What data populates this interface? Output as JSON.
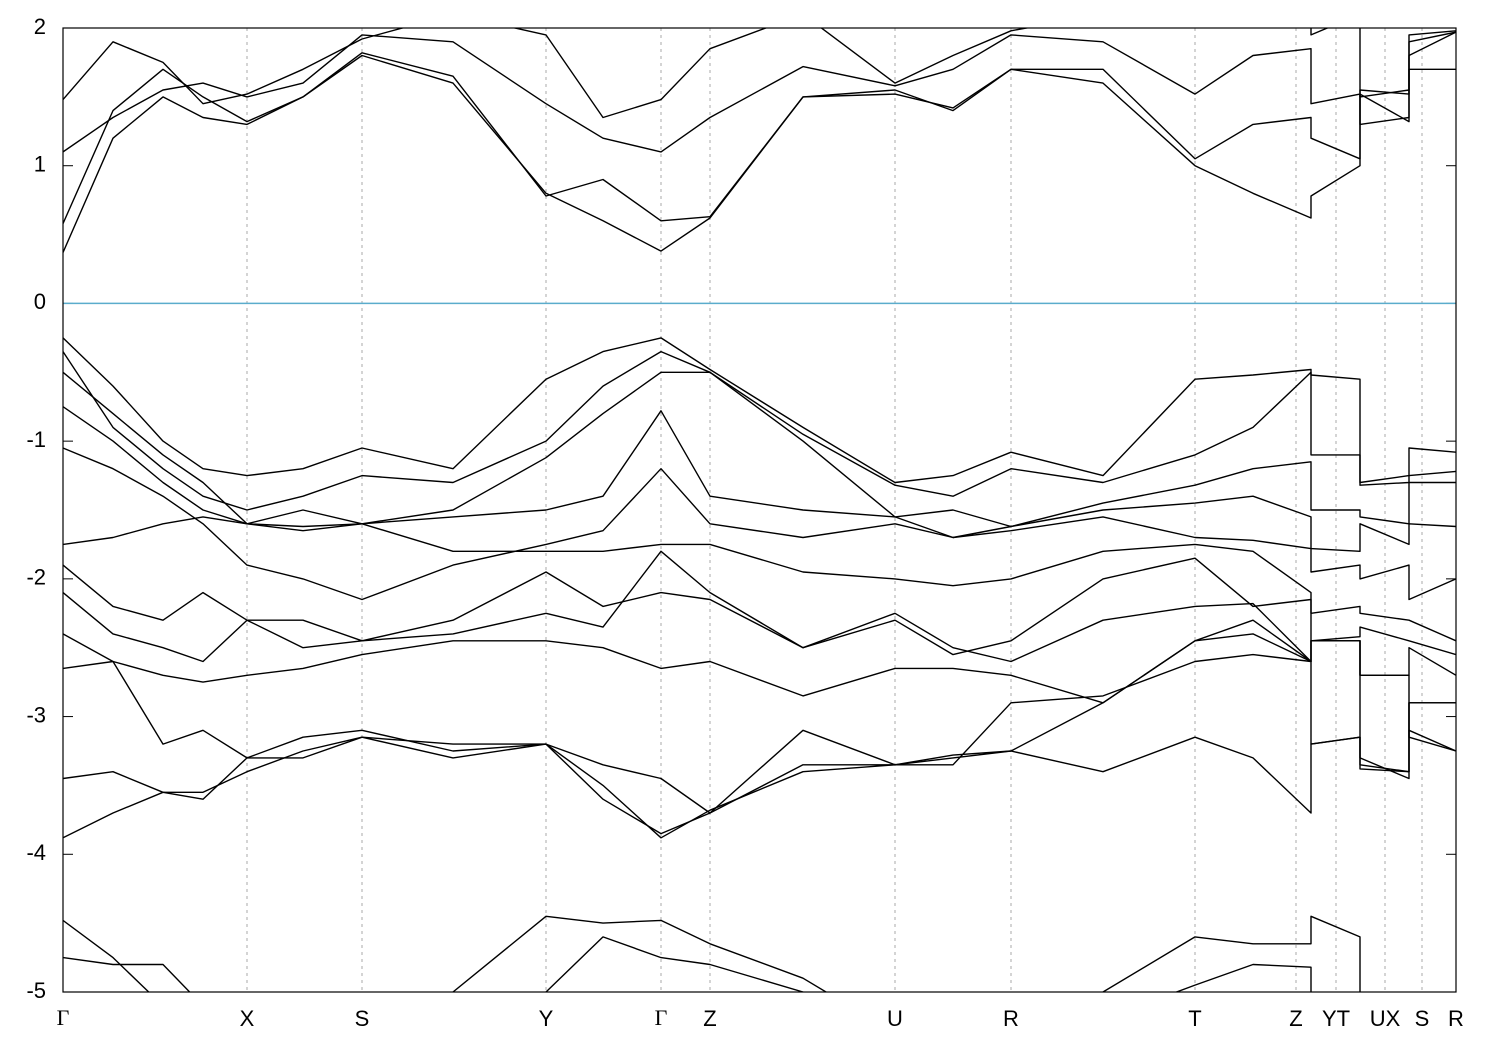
{
  "chart_data": {
    "type": "line",
    "x": [
      0,
      0.5,
      1.0,
      1.4,
      1.84,
      2.4,
      2.99,
      3.9,
      4.83,
      5.4,
      5.98,
      6.47,
      7.4,
      8.32,
      8.9,
      9.48,
      10.4,
      11.32,
      11.9,
      12.48,
      12.48,
      12.97,
      12.97,
      13.46,
      13.46,
      13.93
    ],
    "xlim": [
      0,
      13.93
    ],
    "xticks": [
      {
        "value": 0,
        "label": "Γ"
      },
      {
        "value": 1.84,
        "label": "X"
      },
      {
        "value": 2.99,
        "label": "S"
      },
      {
        "value": 4.83,
        "label": "Y"
      },
      {
        "value": 5.98,
        "label": "Γ"
      },
      {
        "value": 6.47,
        "label": "Z"
      },
      {
        "value": 8.32,
        "label": "U"
      },
      {
        "value": 9.48,
        "label": "R"
      },
      {
        "value": 11.32,
        "label": "T"
      },
      {
        "value": 12.33,
        "label": "Z"
      },
      {
        "value": 12.73,
        "label": "YT"
      },
      {
        "value": 13.22,
        "label": "UX"
      },
      {
        "value": 13.59,
        "label": "S"
      },
      {
        "value": 13.93,
        "label": "R"
      }
    ],
    "ylim": [
      -5,
      2
    ],
    "yticks": [
      -5,
      -4,
      -3,
      -2,
      -1,
      0,
      1,
      2
    ],
    "xgrid": true,
    "reference_line": {
      "value": 0,
      "color": "#5aaccc"
    },
    "series": [
      {
        "color": "#000000",
        "values": [
          0.37,
          1.2,
          1.5,
          1.35,
          1.3,
          1.5,
          1.8,
          1.6,
          0.8,
          0.6,
          0.38,
          0.62,
          1.5,
          1.55,
          1.4,
          1.7,
          1.6,
          1.0,
          0.8,
          0.62,
          0.78,
          1.0,
          1.52,
          1.32,
          1.8,
          1.97
        ]
      },
      {
        "color": "#000000",
        "values": [
          0.58,
          1.4,
          1.7,
          1.5,
          1.32,
          1.5,
          1.82,
          1.65,
          0.78,
          0.9,
          0.6,
          0.63,
          1.5,
          1.52,
          1.42,
          1.7,
          1.7,
          1.05,
          1.3,
          1.35,
          1.2,
          1.05,
          1.55,
          1.52,
          1.9,
          1.97
        ]
      },
      {
        "color": "#000000",
        "values": [
          1.1,
          1.35,
          1.55,
          1.6,
          1.5,
          1.6,
          1.95,
          1.9,
          1.45,
          1.2,
          1.1,
          1.35,
          1.72,
          1.58,
          1.7,
          1.95,
          1.9,
          1.52,
          1.8,
          1.85,
          1.45,
          1.52,
          1.5,
          1.55,
          1.95,
          1.98
        ]
      },
      {
        "color": "#000000",
        "values": [
          1.48,
          1.9,
          1.75,
          1.45,
          1.52,
          1.7,
          1.92,
          2.1,
          1.95,
          1.35,
          1.48,
          1.85,
          2.1,
          1.6,
          1.8,
          1.98,
          2.1,
          2.1,
          2.1,
          2.1,
          1.95,
          2.1,
          1.3,
          1.35,
          1.7,
          1.7
        ]
      },
      {
        "color": "#000000",
        "values": [
          -0.25,
          -0.6,
          -1.0,
          -1.2,
          -1.25,
          -1.2,
          -1.05,
          -1.2,
          -0.55,
          -0.35,
          -0.25,
          -0.48,
          -0.9,
          -1.3,
          -1.25,
          -1.08,
          -1.25,
          -0.55,
          -0.52,
          -0.48,
          -0.52,
          -0.55,
          -1.3,
          -1.25,
          -1.05,
          -1.08
        ]
      },
      {
        "color": "#000000",
        "values": [
          -0.35,
          -0.9,
          -1.2,
          -1.4,
          -1.5,
          -1.4,
          -1.25,
          -1.3,
          -1.0,
          -0.6,
          -0.35,
          -0.5,
          -0.95,
          -1.32,
          -1.4,
          -1.2,
          -1.3,
          -1.1,
          -0.9,
          -0.5,
          -1.1,
          -1.1,
          -1.32,
          -1.3,
          -1.25,
          -1.22
        ]
      },
      {
        "color": "#000000",
        "values": [
          -0.5,
          -0.8,
          -1.1,
          -1.3,
          -1.6,
          -1.5,
          -1.6,
          -1.5,
          -1.12,
          -0.8,
          -0.5,
          -0.5,
          -1.0,
          -1.55,
          -1.5,
          -1.62,
          -1.45,
          -1.32,
          -1.2,
          -1.15,
          -1.5,
          -1.5,
          -1.55,
          -1.6,
          -1.3,
          -1.3
        ]
      },
      {
        "color": "#000000",
        "values": [
          -0.75,
          -1.0,
          -1.3,
          -1.5,
          -1.6,
          -1.62,
          -1.6,
          -1.55,
          -1.5,
          -1.4,
          -0.78,
          -1.4,
          -1.5,
          -1.55,
          -1.7,
          -1.62,
          -1.5,
          -1.45,
          -1.4,
          -1.55,
          -1.78,
          -1.8,
          -1.6,
          -1.75,
          -1.6,
          -1.62
        ]
      },
      {
        "color": "#000000",
        "values": [
          -1.05,
          -1.2,
          -1.4,
          -1.6,
          -1.9,
          -2.0,
          -2.15,
          -1.9,
          -1.75,
          -1.65,
          -1.2,
          -1.6,
          -1.7,
          -1.6,
          -1.7,
          -1.65,
          -1.55,
          -1.7,
          -1.72,
          -1.78,
          -1.95,
          -1.9,
          -2.0,
          -1.9,
          -2.15,
          -2.0
        ]
      },
      {
        "color": "#000000",
        "values": [
          -1.75,
          -1.7,
          -1.6,
          -1.55,
          -1.6,
          -1.65,
          -1.6,
          -1.8,
          -1.8,
          -1.8,
          -1.75,
          -1.75,
          -1.95,
          -2.0,
          -2.05,
          -2.0,
          -1.8,
          -1.75,
          -1.8,
          -2.1,
          -2.25,
          -2.2,
          -2.25,
          -2.3,
          -2.3,
          -2.45
        ]
      },
      {
        "color": "#000000",
        "values": [
          -1.9,
          -2.2,
          -2.3,
          -2.1,
          -2.3,
          -2.3,
          -2.45,
          -2.3,
          -1.95,
          -2.2,
          -2.1,
          -2.15,
          -2.5,
          -2.3,
          -2.55,
          -2.45,
          -2.0,
          -1.85,
          -2.2,
          -2.15,
          -2.45,
          -2.42,
          -2.35,
          -2.45,
          -2.45,
          -2.55
        ]
      },
      {
        "color": "#000000",
        "values": [
          -2.1,
          -2.4,
          -2.5,
          -2.6,
          -2.3,
          -2.5,
          -2.45,
          -2.4,
          -2.25,
          -2.35,
          -1.8,
          -2.1,
          -2.5,
          -2.25,
          -2.5,
          -2.6,
          -2.3,
          -2.2,
          -2.18,
          -2.6,
          -2.45,
          -2.45,
          -2.7,
          -2.7,
          -2.5,
          -2.7
        ]
      },
      {
        "color": "#000000",
        "values": [
          -2.4,
          -2.6,
          -2.7,
          -2.75,
          -2.7,
          -2.65,
          -2.55,
          -2.45,
          -2.45,
          -2.5,
          -2.65,
          -2.6,
          -2.85,
          -2.65,
          -2.65,
          -2.7,
          -2.9,
          -2.45,
          -2.3,
          -2.6,
          -3.2,
          -3.15,
          -3.35,
          -3.4,
          -2.9,
          -2.9
        ]
      },
      {
        "color": "#000000",
        "values": [
          -2.65,
          -2.6,
          -3.2,
          -3.1,
          -3.3,
          -3.15,
          -3.1,
          -3.25,
          -3.2,
          -3.35,
          -3.45,
          -3.7,
          -3.35,
          -3.35,
          -3.3,
          -3.25,
          -3.4,
          -3.15,
          -3.3,
          -3.7,
          -3.2,
          -3.15,
          -3.38,
          -3.4,
          -3.1,
          -3.25
        ]
      },
      {
        "color": "#000000",
        "values": [
          -3.45,
          -3.4,
          -3.55,
          -3.55,
          -3.4,
          -3.25,
          -3.15,
          -3.3,
          -3.2,
          -3.5,
          -3.88,
          -3.68,
          -3.4,
          -3.35,
          -3.28,
          -3.25,
          -2.9,
          -2.45,
          -2.4,
          -2.6,
          -2.45,
          -2.45,
          -3.3,
          -3.45,
          -2.9,
          -2.9
        ]
      },
      {
        "color": "#000000",
        "values": [
          -3.88,
          -3.7,
          -3.55,
          -3.6,
          -3.3,
          -3.3,
          -3.15,
          -3.2,
          -3.2,
          -3.6,
          -3.85,
          -3.7,
          -3.1,
          -3.35,
          -3.35,
          -2.9,
          -2.85,
          -2.6,
          -2.55,
          -2.6,
          -2.45,
          -2.45,
          -2.7,
          -2.7,
          -3.15,
          -3.25
        ]
      },
      {
        "color": "#000000",
        "values": [
          -4.48,
          -4.75,
          -5.1,
          -5.3,
          -5.5,
          -5.5,
          -5.5,
          -5.0,
          -4.45,
          -4.5,
          -4.48,
          -4.65,
          -4.9,
          -5.3,
          -5.3,
          -5.3,
          -5.0,
          -4.6,
          -4.65,
          -4.65,
          -4.45,
          -4.6,
          -5.5,
          -5.5,
          -5.5,
          -5.5
        ]
      },
      {
        "color": "#000000",
        "values": [
          -4.75,
          -4.8,
          -4.8,
          -5.1,
          -5.3,
          -5.5,
          -5.5,
          -5.3,
          -5.0,
          -4.6,
          -4.75,
          -4.8,
          -5.0,
          -5.5,
          -5.5,
          -5.5,
          -5.2,
          -4.95,
          -4.8,
          -4.82,
          -5.5,
          -5.0,
          -5.5,
          -5.5,
          -5.5,
          -5.5
        ]
      }
    ]
  }
}
